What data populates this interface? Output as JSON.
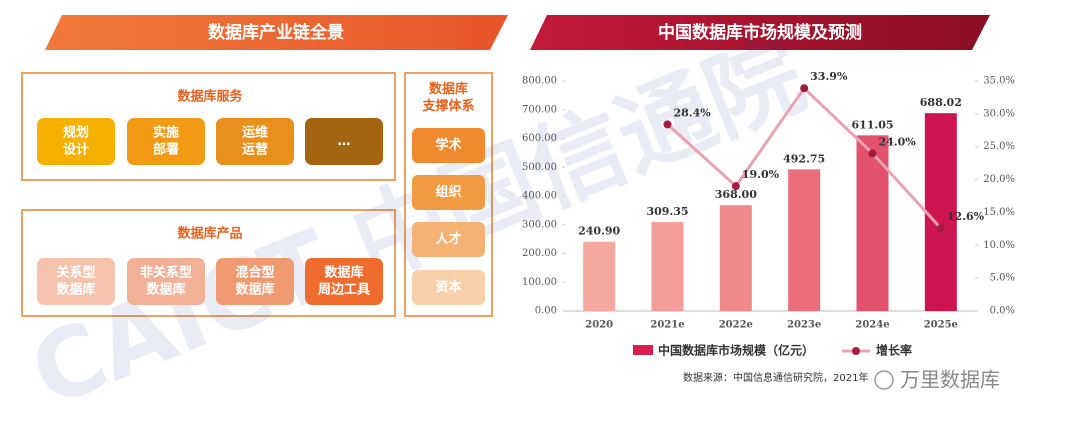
{
  "diagram": {
    "title": "数据库产业链全景",
    "services": {
      "title": "数据库服务",
      "items": [
        [
          "规划",
          "设计"
        ],
        [
          "实施",
          "部署"
        ],
        [
          "运维",
          "运营"
        ],
        [
          "…"
        ]
      ],
      "colors": [
        "#f5b000",
        "#f39a14",
        "#e88f1c",
        "#a5640f"
      ]
    },
    "products": {
      "title": "数据库产品",
      "items": [
        [
          "关系型",
          "数据库"
        ],
        [
          "非关系型",
          "数据库"
        ],
        [
          "混合型",
          "数据库"
        ],
        [
          "数据库",
          "周边工具"
        ]
      ],
      "colors": [
        "#f5c2ab",
        "#f2b197",
        "#f09a72",
        "#f06c2e"
      ]
    },
    "support": {
      "title": [
        "数据库",
        "支撑体系"
      ],
      "items": [
        "学术",
        "组织",
        "人才",
        "资本"
      ],
      "colors": [
        "#ef8a2e",
        "#f19a40",
        "#f4b274",
        "#f8d0aa"
      ]
    },
    "watermark": "CAICT 中国信通院"
  },
  "chart_data": {
    "type": "bar_line",
    "title": "中国数据库市场规模及预测",
    "categories": [
      "2020",
      "2021e",
      "2022e",
      "2023e",
      "2024e",
      "2025e"
    ],
    "series": [
      {
        "name": "中国数据库市场规模（亿元）",
        "type": "bar",
        "color": "#d81e4c",
        "colors": [
          "#f4a8a0",
          "#f29c98",
          "#ef8a8c",
          "#ea6e7c",
          "#e2526c",
          "#cc1450"
        ],
        "values": [
          240.9,
          309.35,
          368.0,
          492.75,
          611.05,
          688.02
        ],
        "value_labels": [
          "240.90",
          "309.35",
          "368.00",
          "492.75",
          "611.05",
          "688.02"
        ]
      },
      {
        "name": "增长率",
        "type": "line",
        "axis": "y2",
        "color": "#e9a2b2",
        "marker_color": "#a51d3c",
        "values": [
          null,
          28.4,
          19.0,
          33.9,
          24.0,
          12.6
        ],
        "value_labels": [
          null,
          "28.4%",
          "19.0%",
          "33.9%",
          "24.0%",
          "12.6%"
        ]
      }
    ],
    "ylim": [
      0,
      800
    ],
    "yticks": [
      {
        "value": 0,
        "label": "0.00"
      },
      {
        "value": 100,
        "label": "100.00"
      },
      {
        "value": 200,
        "label": "200.00"
      },
      {
        "value": 300,
        "label": "300.00"
      },
      {
        "value": 400,
        "label": "400.00"
      },
      {
        "value": 500,
        "label": "500.00"
      },
      {
        "value": 600,
        "label": "600.00"
      },
      {
        "value": 700,
        "label": "700.00"
      },
      {
        "value": 800,
        "label": "800.00"
      }
    ],
    "y2lim": [
      0,
      35
    ],
    "y2ticks": [
      {
        "value": 0,
        "label": "0.0%"
      },
      {
        "value": 5,
        "label": "5.0%"
      },
      {
        "value": 10,
        "label": "10.0%"
      },
      {
        "value": 15,
        "label": "15.0%"
      },
      {
        "value": 20,
        "label": "20.0%"
      },
      {
        "value": 25,
        "label": "25.0%"
      },
      {
        "value": 30,
        "label": "30.0%"
      },
      {
        "value": 35,
        "label": "35.0%"
      }
    ],
    "source": "数据来源：中国信息通信研究院，2021年",
    "brand": "万里数据库"
  }
}
